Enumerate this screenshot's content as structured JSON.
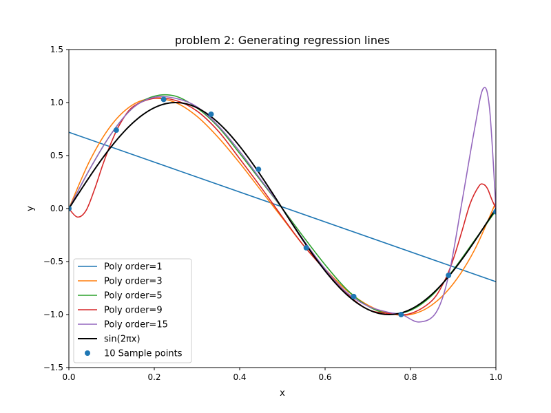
{
  "chart_data": {
    "type": "line",
    "title": "problem 2: Generating regression lines",
    "xlabel": "x",
    "ylabel": "y",
    "xlim": [
      0.0,
      1.0
    ],
    "ylim": [
      -1.5,
      1.5
    ],
    "xticks": [
      "0.0",
      "0.2",
      "0.4",
      "0.6",
      "0.8",
      "1.0"
    ],
    "yticks": [
      "1.5",
      "1.0",
      "0.5",
      "0.0",
      "−0.5",
      "−1.0",
      "−1.5"
    ],
    "grid": false,
    "legend_position": "lower-left",
    "series": [
      {
        "name": "Poly order=1",
        "color": "#1f77b4",
        "x": [
          0.0,
          1.0
        ],
        "y": [
          0.72,
          -0.69
        ]
      },
      {
        "name": "Poly order=3",
        "color": "#ff7f0e",
        "x": [
          0.0,
          0.05,
          0.1,
          0.15,
          0.2,
          0.25,
          0.3,
          0.35,
          0.4,
          0.45,
          0.5,
          0.55,
          0.6,
          0.65,
          0.7,
          0.75,
          0.8,
          0.85,
          0.9,
          0.95,
          1.0
        ],
        "y": [
          0.0,
          0.46,
          0.79,
          0.98,
          1.04,
          1.0,
          0.87,
          0.67,
          0.43,
          0.17,
          -0.09,
          -0.35,
          -0.57,
          -0.77,
          -0.91,
          -0.99,
          -1.0,
          -0.91,
          -0.71,
          -0.39,
          0.06
        ]
      },
      {
        "name": "Poly order=5",
        "color": "#2ca02c",
        "x": [
          0.0,
          0.05,
          0.1,
          0.15,
          0.2,
          0.25,
          0.3,
          0.35,
          0.4,
          0.45,
          0.5,
          0.55,
          0.6,
          0.65,
          0.7,
          0.75,
          0.8,
          0.85,
          0.9,
          0.95,
          1.0
        ],
        "y": [
          0.0,
          0.38,
          0.71,
          0.95,
          1.06,
          1.06,
          0.95,
          0.77,
          0.52,
          0.26,
          0.0,
          -0.27,
          -0.53,
          -0.76,
          -0.92,
          -0.99,
          -0.96,
          -0.82,
          -0.58,
          -0.3,
          -0.02
        ]
      },
      {
        "name": "Poly order=9",
        "color": "#d62728",
        "x": [
          0.0,
          0.02,
          0.04,
          0.06,
          0.08,
          0.1,
          0.12,
          0.15,
          0.2,
          0.25,
          0.3,
          0.35,
          0.4,
          0.45,
          0.5,
          0.55,
          0.6,
          0.65,
          0.7,
          0.75,
          0.8,
          0.85,
          0.88,
          0.9,
          0.92,
          0.94,
          0.96,
          0.97,
          0.98,
          0.99,
          1.0
        ],
        "y": [
          0.0,
          -0.08,
          -0.02,
          0.18,
          0.42,
          0.63,
          0.8,
          0.96,
          1.04,
          1.02,
          0.92,
          0.73,
          0.47,
          0.2,
          -0.08,
          -0.35,
          -0.58,
          -0.8,
          -0.95,
          -0.99,
          -0.99,
          -0.87,
          -0.68,
          -0.48,
          -0.22,
          0.05,
          0.21,
          0.23,
          0.19,
          0.09,
          0.0
        ]
      },
      {
        "name": "Poly order=15",
        "color": "#9467bd",
        "x": [
          0.0,
          0.05,
          0.1,
          0.15,
          0.2,
          0.25,
          0.3,
          0.35,
          0.4,
          0.45,
          0.5,
          0.55,
          0.6,
          0.65,
          0.7,
          0.75,
          0.78,
          0.82,
          0.86,
          0.89,
          0.92,
          0.95,
          0.97,
          0.985,
          1.0
        ],
        "y": [
          0.0,
          0.38,
          0.71,
          0.95,
          1.05,
          1.04,
          0.96,
          0.78,
          0.54,
          0.27,
          0.0,
          -0.3,
          -0.57,
          -0.79,
          -0.92,
          -0.98,
          -1.0,
          -1.07,
          -0.98,
          -0.62,
          0.05,
          0.75,
          1.13,
          0.95,
          0.0
        ]
      },
      {
        "name": "sin(2πx)",
        "color": "#000000",
        "x": "sin",
        "y": "sin(2*pi*x) over 0..1"
      }
    ],
    "sample_points": {
      "name": "10 Sample points",
      "color": "#1f77b4",
      "x": [
        0.0,
        0.111,
        0.222,
        0.333,
        0.444,
        0.556,
        0.667,
        0.778,
        0.889,
        1.0
      ],
      "y": [
        0.0,
        0.74,
        1.03,
        0.89,
        0.37,
        -0.37,
        -0.83,
        -1.0,
        -0.63,
        -0.03
      ]
    }
  }
}
